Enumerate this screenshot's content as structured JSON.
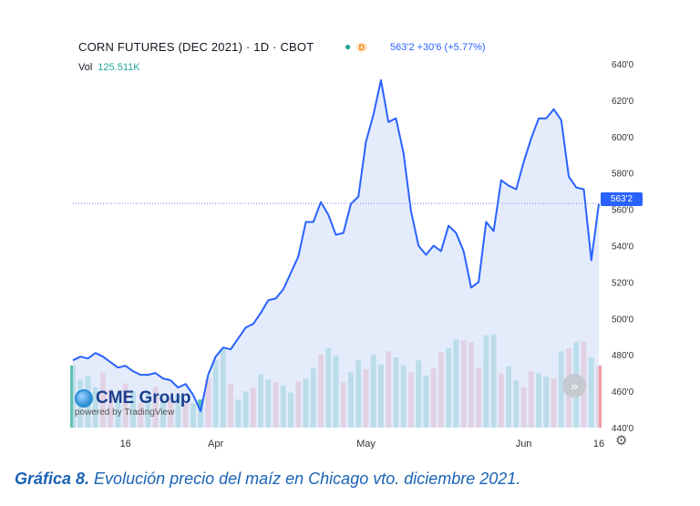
{
  "header": {
    "title": "CORN FUTURES (DEC 2021) · 1D · CBOT",
    "status_dot": "●",
    "status_badge": "D",
    "quote": "563'2  +30'6 (+5.77%)",
    "vol_label": "Vol",
    "vol_value": "125.511K"
  },
  "price_tag": "563'2",
  "logo": {
    "name": "CME Group",
    "sub": "powered by TradingView"
  },
  "nav_button_icon": "»",
  "settings_icon": "⚙",
  "caption": {
    "label": "Gráfica 8.",
    "text": " Evolución precio del maíz en Chicago vto. diciembre 2021."
  },
  "colors": {
    "line": "#2962ff",
    "area": "#dbe6fb",
    "vol_up": "#5dc2b2",
    "vol_down": "#f2999d",
    "price_line": "#8c7cf0"
  },
  "chart_data": {
    "type": "area",
    "title": "CORN FUTURES (DEC 2021) · 1D · CBOT",
    "x_tick_labels": [
      "16",
      "Apr",
      "May",
      "Jun",
      "16"
    ],
    "y_tick_labels": [
      "440'0",
      "460'0",
      "480'0",
      "500'0",
      "520'0",
      "540'0",
      "560'0",
      "580'0",
      "600'0",
      "620'0",
      "640'0"
    ],
    "ylim": [
      440,
      645
    ],
    "last_price": 563.25,
    "x_ticks": [
      {
        "label": "16",
        "day": 7
      },
      {
        "label": "Apr",
        "day": 19
      },
      {
        "label": "May",
        "day": 39
      },
      {
        "label": "Jun",
        "day": 60
      },
      {
        "label": "16",
        "day": 70
      }
    ],
    "price": [
      477,
      479,
      478,
      481,
      479,
      476,
      473,
      474,
      471,
      469,
      469,
      470,
      467,
      466,
      462,
      464,
      458,
      449,
      469,
      479,
      484,
      483,
      489,
      495,
      497,
      503,
      510,
      511,
      516,
      525,
      534,
      553,
      553,
      564,
      557,
      546,
      547,
      563,
      567,
      597,
      612,
      631,
      608,
      610,
      591,
      559,
      540,
      535,
      540,
      537,
      551,
      547,
      537,
      517,
      520,
      553,
      548,
      576,
      573,
      571,
      586,
      599,
      610,
      610,
      615,
      609,
      578,
      572,
      571,
      532,
      563
    ],
    "volume": [
      62,
      48,
      52,
      40,
      55,
      38,
      30,
      44,
      36,
      25,
      34,
      41,
      29,
      30,
      33,
      26,
      24,
      28,
      48,
      67,
      78,
      44,
      28,
      36,
      40,
      53,
      48,
      45,
      42,
      35,
      46,
      49,
      59,
      73,
      79,
      72,
      45,
      55,
      67,
      58,
      73,
      63,
      76,
      70,
      62,
      55,
      67,
      52,
      59,
      75,
      79,
      88,
      87,
      85,
      60,
      92,
      93,
      54,
      61,
      47,
      40,
      56,
      54,
      51,
      49,
      76,
      79,
      85,
      86,
      70,
      62
    ],
    "volume_up": [
      true,
      true,
      true,
      true,
      false,
      false,
      true,
      false,
      true,
      false,
      true,
      false,
      true,
      false,
      true,
      false,
      true,
      true,
      false,
      true,
      true,
      false,
      true,
      true,
      false,
      true,
      true,
      false,
      true,
      true,
      false,
      true,
      true,
      false,
      true,
      true,
      false,
      true,
      true,
      false,
      true,
      true,
      false,
      true,
      true,
      false,
      true,
      true,
      false,
      false,
      true,
      true,
      false,
      false,
      false,
      true,
      true,
      false,
      true,
      true,
      false,
      false,
      true,
      true,
      false,
      true,
      false,
      true,
      false,
      true,
      false
    ]
  }
}
